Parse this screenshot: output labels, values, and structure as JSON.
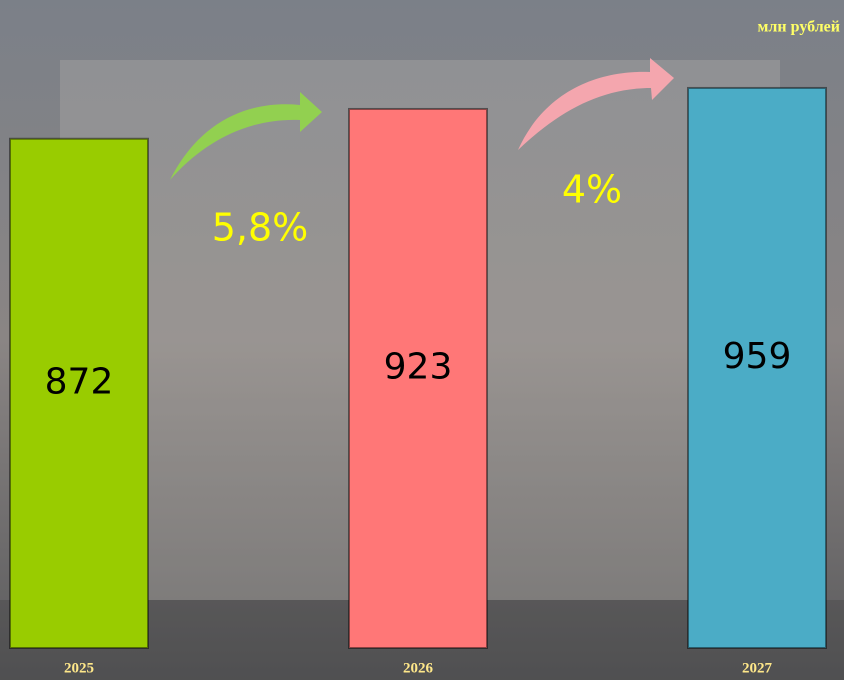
{
  "chart_data": {
    "type": "bar",
    "unit": "млн рублей",
    "categories": [
      "2025",
      "2026",
      "2027"
    ],
    "values": [
      872,
      923,
      959
    ],
    "colors": [
      "#99cc00",
      "#ff7777",
      "#4bacc6"
    ],
    "ylim": [
      0,
      1000
    ],
    "annotations": [
      "5,8%",
      "4%"
    ]
  }
}
